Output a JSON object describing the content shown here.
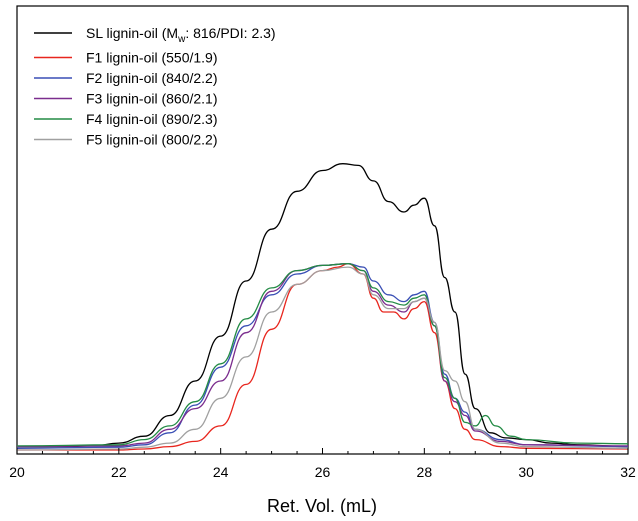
{
  "chart_data": {
    "type": "line",
    "xlabel": "Ret. Vol. (mL)",
    "xlim": [
      20,
      32
    ],
    "ylim": [
      0,
      1
    ],
    "x_ticks": [
      "20",
      "22",
      "24",
      "26",
      "28",
      "30",
      "32"
    ],
    "y_ticks_shown": false,
    "legend_position": "top-left",
    "series": [
      {
        "name": "SL lignin-oil (M",
        "name_sub": "w",
        "name_tail": ": 816/PDI: 2.3)",
        "color": "#000000",
        "points": [
          [
            20,
            0.01
          ],
          [
            21,
            0.01
          ],
          [
            21.5,
            0.012
          ],
          [
            22,
            0.02
          ],
          [
            22.5,
            0.04
          ],
          [
            23,
            0.1
          ],
          [
            23.5,
            0.2
          ],
          [
            24,
            0.33
          ],
          [
            24.5,
            0.49
          ],
          [
            25,
            0.64
          ],
          [
            25.5,
            0.75
          ],
          [
            26,
            0.81
          ],
          [
            26.4,
            0.83
          ],
          [
            26.7,
            0.825
          ],
          [
            27,
            0.78
          ],
          [
            27.3,
            0.72
          ],
          [
            27.6,
            0.69
          ],
          [
            27.8,
            0.71
          ],
          [
            28,
            0.73
          ],
          [
            28.2,
            0.65
          ],
          [
            28.4,
            0.5
          ],
          [
            28.6,
            0.4
          ],
          [
            28.8,
            0.22
          ],
          [
            29,
            0.12
          ],
          [
            29.3,
            0.05
          ],
          [
            29.6,
            0.035
          ],
          [
            30,
            0.03
          ],
          [
            30.5,
            0.02
          ],
          [
            31,
            0.015
          ],
          [
            32,
            0.01
          ]
        ]
      },
      {
        "name": "F1 lignin-oil (550/1.9)",
        "color": "#e8261e",
        "points": [
          [
            20,
            0.0
          ],
          [
            22,
            0.0
          ],
          [
            22.5,
            0.003
          ],
          [
            23,
            0.01
          ],
          [
            23.5,
            0.025
          ],
          [
            24,
            0.07
          ],
          [
            24.5,
            0.19
          ],
          [
            25,
            0.35
          ],
          [
            25.5,
            0.48
          ],
          [
            26,
            0.52
          ],
          [
            26.3,
            0.53
          ],
          [
            26.5,
            0.54
          ],
          [
            26.8,
            0.51
          ],
          [
            27,
            0.44
          ],
          [
            27.2,
            0.4
          ],
          [
            27.4,
            0.4
          ],
          [
            27.6,
            0.38
          ],
          [
            27.8,
            0.41
          ],
          [
            28,
            0.43
          ],
          [
            28.2,
            0.34
          ],
          [
            28.4,
            0.2
          ],
          [
            28.6,
            0.12
          ],
          [
            28.8,
            0.06
          ],
          [
            29,
            0.03
          ],
          [
            29.5,
            0.01
          ],
          [
            30,
            0.005
          ],
          [
            32,
            0.003
          ]
        ]
      },
      {
        "name": "F2 lignin-oil (840/2.2)",
        "color": "#3a4fb5",
        "points": [
          [
            20,
            0.005
          ],
          [
            22,
            0.008
          ],
          [
            22.5,
            0.015
          ],
          [
            23,
            0.05
          ],
          [
            23.5,
            0.13
          ],
          [
            24,
            0.24
          ],
          [
            24.5,
            0.36
          ],
          [
            25,
            0.45
          ],
          [
            25.5,
            0.51
          ],
          [
            26,
            0.535
          ],
          [
            26.5,
            0.54
          ],
          [
            26.8,
            0.53
          ],
          [
            27,
            0.49
          ],
          [
            27.3,
            0.45
          ],
          [
            27.6,
            0.43
          ],
          [
            27.8,
            0.45
          ],
          [
            28,
            0.46
          ],
          [
            28.2,
            0.37
          ],
          [
            28.4,
            0.22
          ],
          [
            28.6,
            0.15
          ],
          [
            28.8,
            0.11
          ],
          [
            29,
            0.06
          ],
          [
            29.5,
            0.03
          ],
          [
            30,
            0.015
          ],
          [
            32,
            0.01
          ]
        ]
      },
      {
        "name": "F3 lignin-oil (860/2.1)",
        "color": "#7b2d8e",
        "points": [
          [
            20,
            0.01
          ],
          [
            22,
            0.012
          ],
          [
            22.5,
            0.02
          ],
          [
            23,
            0.06
          ],
          [
            23.5,
            0.12
          ],
          [
            24,
            0.2
          ],
          [
            24.5,
            0.34
          ],
          [
            25,
            0.46
          ],
          [
            25.5,
            0.52
          ],
          [
            26,
            0.535
          ],
          [
            26.5,
            0.54
          ],
          [
            26.8,
            0.52
          ],
          [
            27,
            0.46
          ],
          [
            27.3,
            0.42
          ],
          [
            27.6,
            0.4
          ],
          [
            27.8,
            0.43
          ],
          [
            28,
            0.44
          ],
          [
            28.2,
            0.36
          ],
          [
            28.4,
            0.2
          ],
          [
            28.6,
            0.14
          ],
          [
            28.8,
            0.1
          ],
          [
            29,
            0.055
          ],
          [
            29.5,
            0.025
          ],
          [
            30,
            0.015
          ],
          [
            32,
            0.012
          ]
        ]
      },
      {
        "name": "F4 lignin-oil (890/2.3)",
        "color": "#238b45",
        "points": [
          [
            20,
            0.012
          ],
          [
            22,
            0.015
          ],
          [
            22.5,
            0.03
          ],
          [
            23,
            0.07
          ],
          [
            23.5,
            0.14
          ],
          [
            24,
            0.25
          ],
          [
            24.5,
            0.38
          ],
          [
            25,
            0.47
          ],
          [
            25.5,
            0.52
          ],
          [
            26,
            0.535
          ],
          [
            26.5,
            0.54
          ],
          [
            26.8,
            0.52
          ],
          [
            27,
            0.47
          ],
          [
            27.3,
            0.43
          ],
          [
            27.6,
            0.42
          ],
          [
            27.8,
            0.44
          ],
          [
            28,
            0.45
          ],
          [
            28.2,
            0.36
          ],
          [
            28.4,
            0.21
          ],
          [
            28.6,
            0.15
          ],
          [
            28.8,
            0.08
          ],
          [
            29,
            0.07
          ],
          [
            29.2,
            0.1
          ],
          [
            29.4,
            0.07
          ],
          [
            29.7,
            0.04
          ],
          [
            30,
            0.03
          ],
          [
            31,
            0.02
          ],
          [
            32,
            0.018
          ]
        ]
      },
      {
        "name": "F5 lignin-oil (800/2.2)",
        "color": "#a0a0a0",
        "points": [
          [
            20,
            0.0
          ],
          [
            22,
            0.003
          ],
          [
            22.5,
            0.008
          ],
          [
            23,
            0.02
          ],
          [
            23.5,
            0.06
          ],
          [
            24,
            0.15
          ],
          [
            24.5,
            0.27
          ],
          [
            25,
            0.4
          ],
          [
            25.5,
            0.48
          ],
          [
            26,
            0.52
          ],
          [
            26.5,
            0.53
          ],
          [
            26.8,
            0.51
          ],
          [
            27,
            0.45
          ],
          [
            27.3,
            0.41
          ],
          [
            27.6,
            0.41
          ],
          [
            27.8,
            0.43
          ],
          [
            28,
            0.44
          ],
          [
            28.2,
            0.37
          ],
          [
            28.4,
            0.23
          ],
          [
            28.6,
            0.2
          ],
          [
            28.8,
            0.14
          ],
          [
            29,
            0.06
          ],
          [
            29.5,
            0.02
          ],
          [
            30,
            0.01
          ],
          [
            32,
            0.005
          ]
        ]
      }
    ]
  }
}
